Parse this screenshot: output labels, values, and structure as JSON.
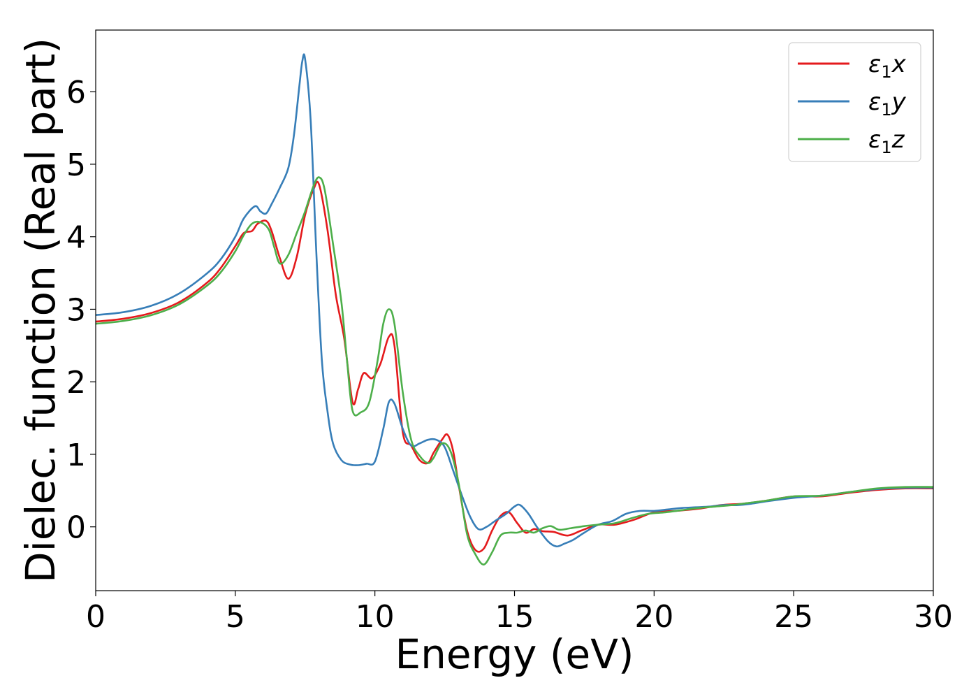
{
  "chart_data": {
    "type": "line",
    "title": "",
    "xlabel": "Energy (eV)",
    "ylabel": "Dielec. function (Real part)",
    "xlim": [
      0,
      30
    ],
    "ylim": [
      -0.88,
      6.85
    ],
    "xticks": [
      0,
      5,
      10,
      15,
      20,
      25,
      30
    ],
    "yticks": [
      0,
      1,
      2,
      3,
      4,
      5,
      6
    ],
    "grid": false,
    "legend_position": "top-right",
    "series": [
      {
        "name": "ε1x",
        "legend": {
          "symbol": "ε",
          "sub": "1",
          "axis": "x"
        },
        "color": "#e41a1c",
        "x": [
          0,
          1,
          2,
          3,
          4,
          4.5,
          5,
          5.3,
          5.6,
          5.8,
          6.1,
          6.3,
          6.6,
          6.9,
          7.2,
          7.5,
          7.8,
          8.0,
          8.3,
          8.6,
          8.9,
          9.2,
          9.4,
          9.6,
          9.9,
          10.2,
          10.5,
          10.7,
          11.0,
          11.3,
          11.6,
          11.9,
          12.1,
          12.4,
          12.6,
          12.8,
          13.0,
          13.3,
          13.6,
          13.9,
          14.2,
          14.5,
          14.8,
          15.1,
          15.4,
          15.7,
          16.0,
          16.4,
          16.9,
          17.4,
          18.0,
          18.6,
          19.3,
          20.0,
          20.8,
          21.6,
          22.4,
          23.2,
          24.0,
          25.0,
          26.0,
          27.0,
          28.0,
          29.0,
          30.0
        ],
        "y": [
          2.83,
          2.87,
          2.95,
          3.1,
          3.37,
          3.58,
          3.87,
          4.05,
          4.08,
          4.18,
          4.22,
          4.08,
          3.7,
          3.42,
          3.72,
          4.3,
          4.65,
          4.72,
          4.1,
          3.2,
          2.6,
          1.72,
          1.9,
          2.12,
          2.05,
          2.25,
          2.62,
          2.5,
          1.3,
          1.12,
          0.92,
          0.88,
          1.02,
          1.2,
          1.27,
          1.05,
          0.58,
          -0.05,
          -0.32,
          -0.3,
          -0.05,
          0.15,
          0.2,
          0.05,
          -0.08,
          -0.03,
          -0.06,
          -0.07,
          -0.12,
          -0.05,
          0.03,
          0.03,
          0.1,
          0.2,
          0.22,
          0.25,
          0.3,
          0.32,
          0.36,
          0.42,
          0.42,
          0.47,
          0.51,
          0.53,
          0.53
        ]
      },
      {
        "name": "ε1y",
        "legend": {
          "symbol": "ε",
          "sub": "1",
          "axis": "y"
        },
        "color": "#377eb8",
        "x": [
          0,
          1,
          2,
          3,
          4,
          4.5,
          5,
          5.3,
          5.7,
          5.9,
          6.1,
          6.3,
          6.6,
          6.9,
          7.1,
          7.3,
          7.4,
          7.5,
          7.7,
          7.9,
          8.1,
          8.3,
          8.5,
          8.8,
          9.1,
          9.4,
          9.7,
          10.0,
          10.3,
          10.5,
          10.7,
          11.0,
          11.3,
          11.6,
          11.9,
          12.2,
          12.5,
          12.8,
          13.1,
          13.4,
          13.7,
          14.0,
          14.3,
          14.7,
          15.0,
          15.2,
          15.5,
          15.8,
          16.2,
          16.5,
          16.8,
          17.1,
          17.5,
          18.0,
          18.5,
          19.0,
          19.5,
          20.0,
          20.5,
          21.0,
          21.5,
          22.0,
          22.5,
          23.0,
          23.5,
          24.0,
          25.0,
          26.0,
          27.0,
          28.0,
          29.0,
          30.0
        ],
        "y": [
          2.92,
          2.96,
          3.05,
          3.22,
          3.5,
          3.7,
          4.0,
          4.25,
          4.42,
          4.35,
          4.32,
          4.45,
          4.68,
          4.95,
          5.4,
          6.1,
          6.42,
          6.45,
          5.6,
          3.8,
          2.3,
          1.6,
          1.15,
          0.92,
          0.86,
          0.85,
          0.87,
          0.9,
          1.35,
          1.72,
          1.7,
          1.35,
          1.12,
          1.15,
          1.2,
          1.2,
          1.1,
          0.78,
          0.45,
          0.15,
          -0.03,
          0.0,
          0.08,
          0.18,
          0.28,
          0.3,
          0.18,
          0.0,
          -0.2,
          -0.27,
          -0.23,
          -0.18,
          -0.08,
          0.03,
          0.08,
          0.18,
          0.22,
          0.22,
          0.24,
          0.26,
          0.27,
          0.28,
          0.3,
          0.3,
          0.32,
          0.35,
          0.4,
          0.43,
          0.48,
          0.52,
          0.54,
          0.54
        ]
      },
      {
        "name": "ε1z",
        "legend": {
          "symbol": "ε",
          "sub": "1",
          "axis": "z"
        },
        "color": "#4daf4a",
        "x": [
          0,
          1,
          2,
          3,
          4,
          4.5,
          5,
          5.3,
          5.6,
          5.9,
          6.2,
          6.4,
          6.6,
          6.9,
          7.2,
          7.5,
          7.8,
          8.0,
          8.2,
          8.5,
          8.8,
          9.0,
          9.2,
          9.5,
          9.8,
          10.1,
          10.3,
          10.5,
          10.7,
          11.0,
          11.3,
          11.6,
          11.9,
          12.1,
          12.4,
          12.7,
          13.0,
          13.3,
          13.6,
          13.9,
          14.2,
          14.5,
          14.8,
          15.1,
          15.4,
          15.7,
          16.0,
          16.3,
          16.6,
          17.0,
          17.5,
          18.0,
          18.6,
          19.2,
          19.8,
          20.4,
          21.0,
          21.6,
          22.2,
          22.8,
          23.4,
          24.0,
          25.0,
          26.0,
          27.0,
          28.0,
          29.0,
          30.0
        ],
        "y": [
          2.8,
          2.84,
          2.92,
          3.07,
          3.33,
          3.52,
          3.8,
          4.02,
          4.18,
          4.2,
          4.1,
          3.85,
          3.63,
          3.75,
          4.05,
          4.35,
          4.7,
          4.82,
          4.65,
          3.9,
          3.1,
          2.3,
          1.6,
          1.58,
          1.72,
          2.3,
          2.8,
          3.0,
          2.8,
          1.85,
          1.2,
          0.98,
          0.88,
          0.95,
          1.15,
          1.05,
          0.6,
          -0.1,
          -0.38,
          -0.52,
          -0.35,
          -0.12,
          -0.08,
          -0.08,
          -0.05,
          -0.08,
          -0.02,
          0.01,
          -0.04,
          -0.02,
          0.01,
          0.03,
          0.05,
          0.12,
          0.18,
          0.2,
          0.23,
          0.26,
          0.28,
          0.3,
          0.33,
          0.36,
          0.42,
          0.43,
          0.48,
          0.53,
          0.55,
          0.55
        ]
      }
    ]
  }
}
